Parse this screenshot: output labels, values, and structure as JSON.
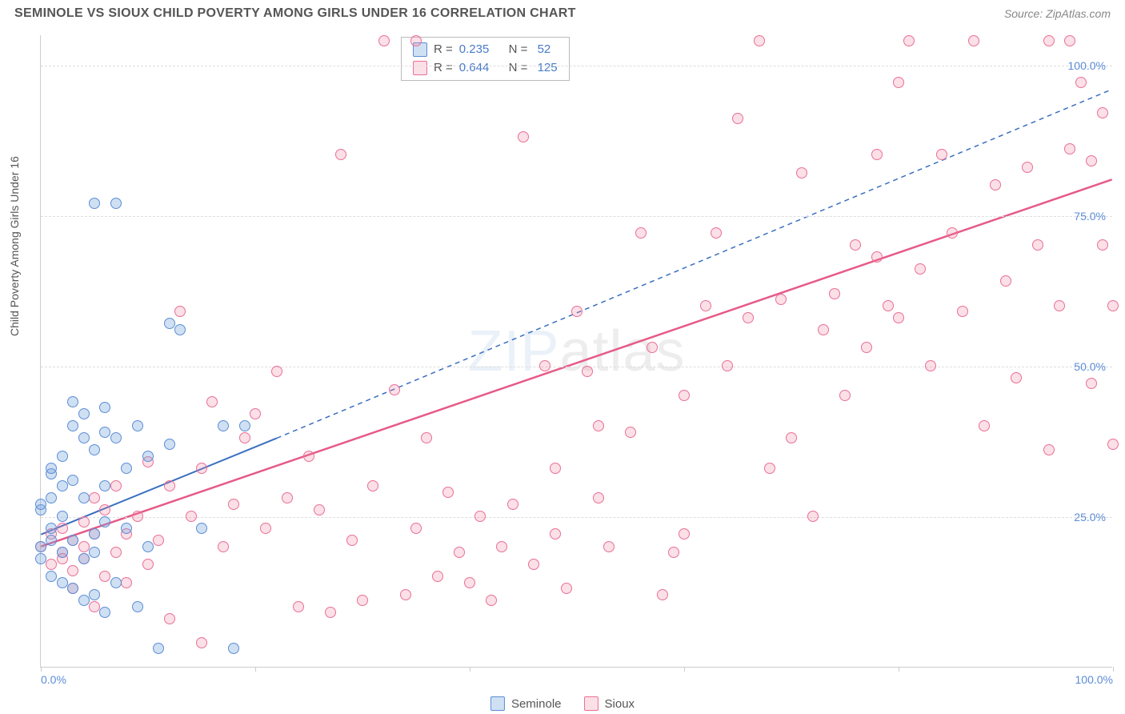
{
  "title": "SEMINOLE VS SIOUX CHILD POVERTY AMONG GIRLS UNDER 16 CORRELATION CHART",
  "source": "Source: ZipAtlas.com",
  "ylabel": "Child Poverty Among Girls Under 16",
  "watermark_a": "ZIP",
  "watermark_b": "atlas",
  "chart": {
    "type": "scatter",
    "xlim": [
      0,
      100
    ],
    "ylim": [
      0,
      105
    ],
    "xticks": [
      0,
      20,
      40,
      60,
      80,
      100
    ],
    "xtick_labels": [
      "0.0%",
      "",
      "",
      "",
      "",
      "100.0%"
    ],
    "yticks": [
      25,
      50,
      75,
      100
    ],
    "ytick_labels": [
      "25.0%",
      "50.0%",
      "75.0%",
      "100.0%"
    ],
    "grid_color": "#dddddd",
    "axis_color": "#cccccc",
    "background_color": "#ffffff",
    "series": {
      "seminole": {
        "label": "Seminole",
        "color_fill": "rgba(120,165,220,0.35)",
        "color_stroke": "#5b8dd6",
        "R": "0.235",
        "N": "52",
        "trend": {
          "x1": 0,
          "y1": 22,
          "x2": 22,
          "y2": 38,
          "dash_x2": 100,
          "dash_y2": 96,
          "stroke": "#3a6fc0",
          "width": 2
        },
        "points": [
          [
            0,
            18
          ],
          [
            0,
            20
          ],
          [
            0,
            26
          ],
          [
            0,
            27
          ],
          [
            1,
            21
          ],
          [
            1,
            23
          ],
          [
            1,
            15
          ],
          [
            1,
            28
          ],
          [
            1,
            32
          ],
          [
            1,
            33
          ],
          [
            2,
            19
          ],
          [
            2,
            25
          ],
          [
            2,
            30
          ],
          [
            2,
            35
          ],
          [
            2,
            14
          ],
          [
            3,
            21
          ],
          [
            3,
            31
          ],
          [
            3,
            40
          ],
          [
            3,
            44
          ],
          [
            3,
            13
          ],
          [
            4,
            11
          ],
          [
            4,
            18
          ],
          [
            4,
            28
          ],
          [
            4,
            38
          ],
          [
            4,
            42
          ],
          [
            5,
            12
          ],
          [
            5,
            19
          ],
          [
            5,
            22
          ],
          [
            5,
            36
          ],
          [
            5,
            77
          ],
          [
            6,
            9
          ],
          [
            6,
            24
          ],
          [
            6,
            30
          ],
          [
            6,
            39
          ],
          [
            6,
            43
          ],
          [
            7,
            14
          ],
          [
            7,
            38
          ],
          [
            7,
            77
          ],
          [
            8,
            23
          ],
          [
            8,
            33
          ],
          [
            9,
            10
          ],
          [
            9,
            40
          ],
          [
            10,
            20
          ],
          [
            10,
            35
          ],
          [
            11,
            3
          ],
          [
            12,
            37
          ],
          [
            12,
            57
          ],
          [
            13,
            56
          ],
          [
            15,
            23
          ],
          [
            17,
            40
          ],
          [
            18,
            3
          ],
          [
            19,
            40
          ]
        ]
      },
      "sioux": {
        "label": "Sioux",
        "color_fill": "rgba(240,130,160,0.25)",
        "color_stroke": "#ea6e96",
        "R": "0.644",
        "N": "125",
        "trend": {
          "x1": 0,
          "y1": 20,
          "x2": 100,
          "y2": 81,
          "stroke": "#e65a87",
          "width": 2.5
        },
        "points": [
          [
            0,
            20
          ],
          [
            1,
            22
          ],
          [
            1,
            17
          ],
          [
            2,
            19
          ],
          [
            2,
            18
          ],
          [
            2,
            23
          ],
          [
            3,
            16
          ],
          [
            3,
            21
          ],
          [
            3,
            13
          ],
          [
            4,
            18
          ],
          [
            4,
            20
          ],
          [
            4,
            24
          ],
          [
            5,
            10
          ],
          [
            5,
            22
          ],
          [
            5,
            28
          ],
          [
            6,
            15
          ],
          [
            6,
            26
          ],
          [
            7,
            19
          ],
          [
            7,
            30
          ],
          [
            8,
            14
          ],
          [
            8,
            22
          ],
          [
            9,
            25
          ],
          [
            10,
            17
          ],
          [
            10,
            34
          ],
          [
            11,
            21
          ],
          [
            12,
            8
          ],
          [
            12,
            30
          ],
          [
            13,
            59
          ],
          [
            14,
            25
          ],
          [
            15,
            4
          ],
          [
            15,
            33
          ],
          [
            16,
            44
          ],
          [
            17,
            20
          ],
          [
            18,
            27
          ],
          [
            19,
            38
          ],
          [
            20,
            42
          ],
          [
            21,
            23
          ],
          [
            22,
            49
          ],
          [
            23,
            28
          ],
          [
            24,
            10
          ],
          [
            25,
            35
          ],
          [
            26,
            26
          ],
          [
            27,
            9
          ],
          [
            28,
            85
          ],
          [
            29,
            21
          ],
          [
            30,
            11
          ],
          [
            31,
            30
          ],
          [
            32,
            104
          ],
          [
            33,
            46
          ],
          [
            34,
            12
          ],
          [
            35,
            104
          ],
          [
            35,
            23
          ],
          [
            36,
            38
          ],
          [
            37,
            15
          ],
          [
            38,
            29
          ],
          [
            39,
            19
          ],
          [
            40,
            14
          ],
          [
            41,
            25
          ],
          [
            42,
            11
          ],
          [
            43,
            20
          ],
          [
            44,
            27
          ],
          [
            45,
            88
          ],
          [
            46,
            17
          ],
          [
            47,
            50
          ],
          [
            48,
            33
          ],
          [
            49,
            13
          ],
          [
            50,
            59
          ],
          [
            51,
            49
          ],
          [
            52,
            28
          ],
          [
            53,
            20
          ],
          [
            55,
            39
          ],
          [
            56,
            72
          ],
          [
            57,
            53
          ],
          [
            58,
            12
          ],
          [
            59,
            19
          ],
          [
            60,
            22
          ],
          [
            62,
            60
          ],
          [
            63,
            72
          ],
          [
            64,
            50
          ],
          [
            65,
            91
          ],
          [
            66,
            58
          ],
          [
            67,
            104
          ],
          [
            68,
            33
          ],
          [
            69,
            61
          ],
          [
            70,
            38
          ],
          [
            71,
            82
          ],
          [
            72,
            25
          ],
          [
            73,
            56
          ],
          [
            74,
            62
          ],
          [
            75,
            45
          ],
          [
            76,
            70
          ],
          [
            77,
            53
          ],
          [
            78,
            85
          ],
          [
            79,
            60
          ],
          [
            80,
            97
          ],
          [
            81,
            104
          ],
          [
            82,
            66
          ],
          [
            83,
            50
          ],
          [
            84,
            85
          ],
          [
            85,
            72
          ],
          [
            86,
            59
          ],
          [
            87,
            104
          ],
          [
            88,
            40
          ],
          [
            89,
            80
          ],
          [
            90,
            64
          ],
          [
            91,
            48
          ],
          [
            92,
            83
          ],
          [
            93,
            70
          ],
          [
            94,
            104
          ],
          [
            94,
            36
          ],
          [
            95,
            60
          ],
          [
            96,
            86
          ],
          [
            96,
            104
          ],
          [
            97,
            97
          ],
          [
            98,
            47
          ],
          [
            98,
            84
          ],
          [
            99,
            70
          ],
          [
            99,
            92
          ],
          [
            100,
            60
          ],
          [
            100,
            37
          ],
          [
            78,
            68
          ],
          [
            80,
            58
          ],
          [
            60,
            45
          ],
          [
            52,
            40
          ],
          [
            48,
            22
          ]
        ]
      }
    }
  },
  "rbox": {
    "rows": [
      {
        "swatch": "seminole",
        "r": "0.235",
        "n": "52"
      },
      {
        "swatch": "sioux",
        "r": "0.644",
        "n": "125"
      }
    ]
  },
  "legend": [
    {
      "swatch": "seminole",
      "label": "Seminole"
    },
    {
      "swatch": "sioux",
      "label": "Sioux"
    }
  ]
}
